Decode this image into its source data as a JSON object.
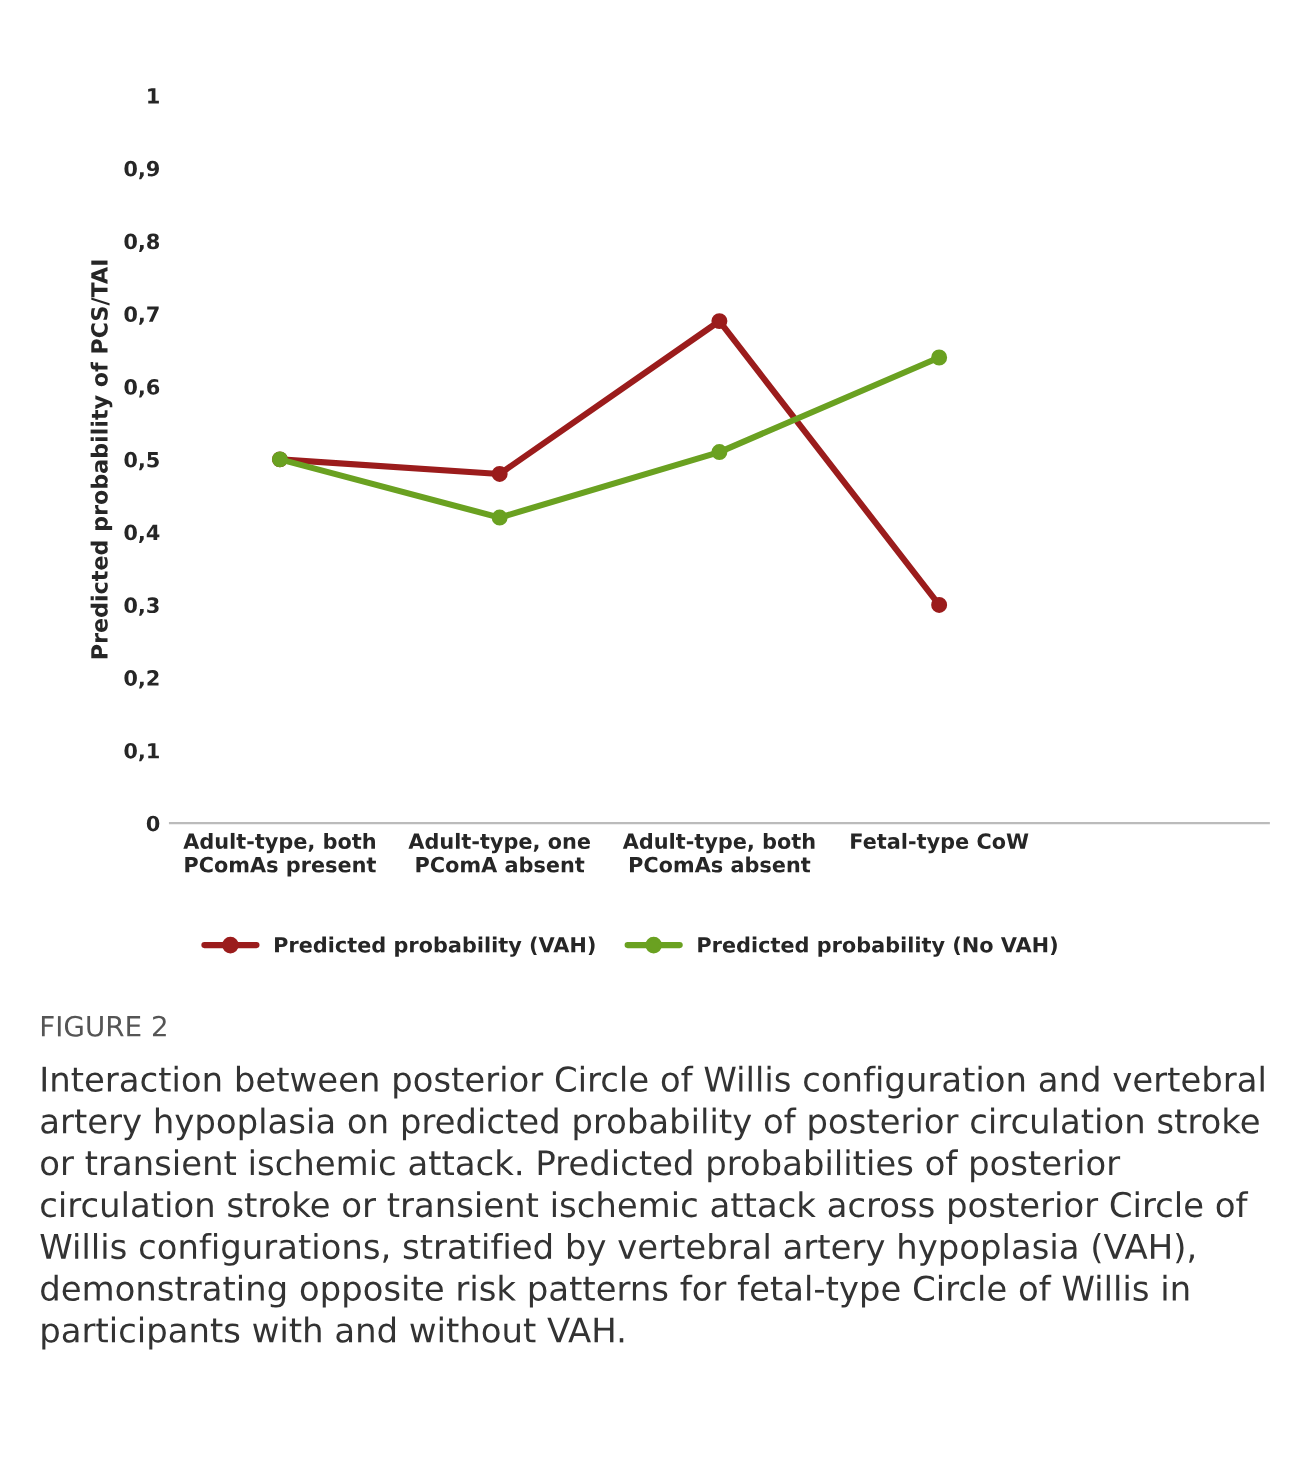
{
  "chart_data": {
    "type": "line",
    "ylabel": "Predicted probability of PCS/TAI",
    "categories": [
      "Adult-type, both\nPComAs present",
      "Adult-type, one\nPComA absent",
      "Adult-type, both\nPComAs absent",
      "Fetal-type CoW"
    ],
    "series": [
      {
        "name": "Predicted probability (VAH)",
        "color": "#9b1c1c",
        "values": [
          0.5,
          0.48,
          0.69,
          0.3
        ]
      },
      {
        "name": "Predicted probability (No VAH)",
        "color": "#6aa121",
        "values": [
          0.5,
          0.42,
          0.51,
          0.64
        ]
      }
    ],
    "ylim": [
      0,
      1
    ],
    "yticks": [
      {
        "value": 0,
        "label": "0"
      },
      {
        "value": 0.1,
        "label": "0,1"
      },
      {
        "value": 0.2,
        "label": "0,2"
      },
      {
        "value": 0.3,
        "label": "0,3"
      },
      {
        "value": 0.4,
        "label": "0,4"
      },
      {
        "value": 0.5,
        "label": "0,5"
      },
      {
        "value": 0.6,
        "label": "0,6"
      },
      {
        "value": 0.7,
        "label": "0,7"
      },
      {
        "value": 0.8,
        "label": "0,8"
      },
      {
        "value": 0.9,
        "label": "0,9"
      },
      {
        "value": 1,
        "label": "1"
      }
    ],
    "marker": "circle",
    "line_style": "solid",
    "legend": "bottom",
    "annotations": [
      "FIGURE 2",
      "Interaction between posterior Circle of Willis configuration and vertebral artery hypoplasia on predicted probability of posterior circulation stroke or transient ischemic attack. Predicted probabilities of posterior circulation stroke or transient ischemic attack across posterior Circle of Willis configurations, stratified by vertebral artery hypoplasia (VAH), demonstrating opposite risk patterns for fetal-type Circle of Willis in participants with and without VAH."
    ]
  }
}
